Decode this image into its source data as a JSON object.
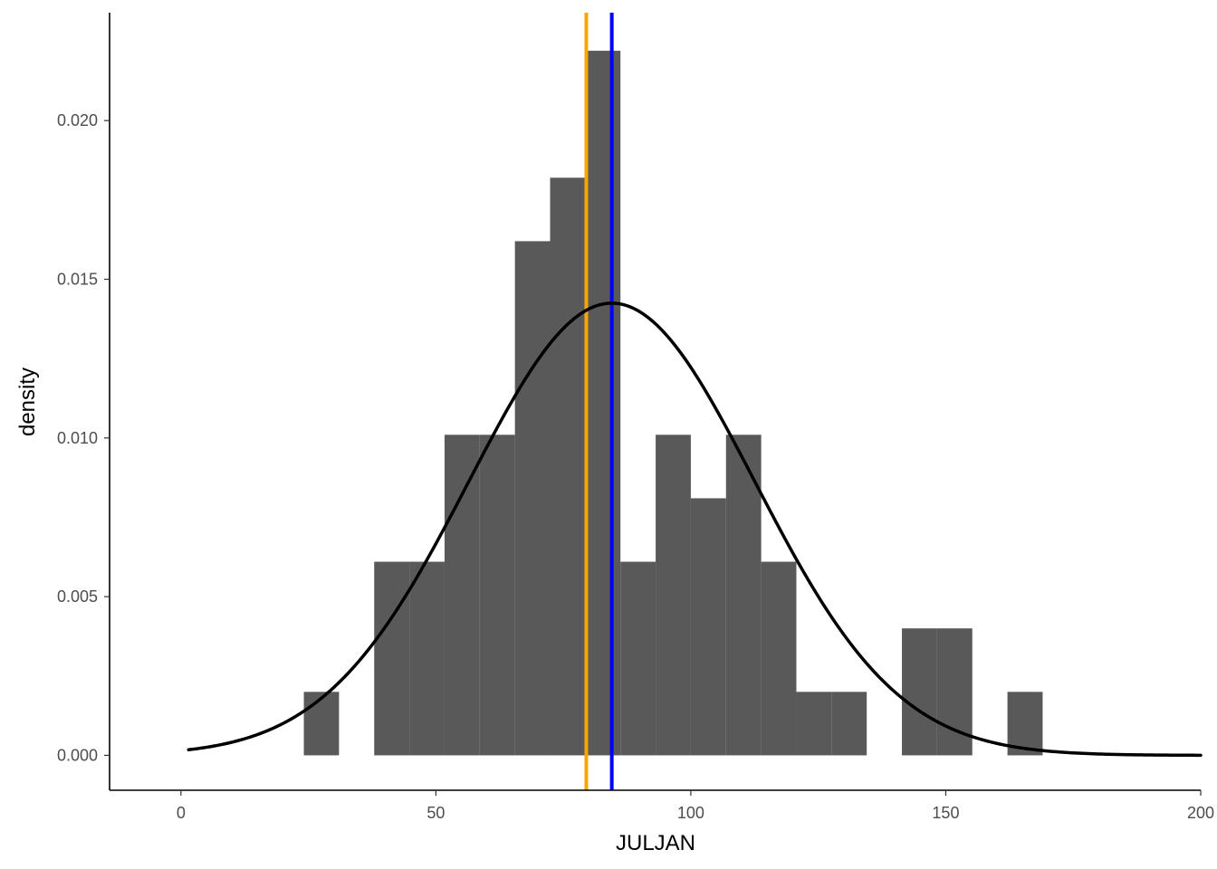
{
  "chart_data": {
    "type": "bar",
    "subtype": "histogram-with-density",
    "xlabel": "JULJAN",
    "ylabel": "density",
    "xlim": [
      -14,
      200
    ],
    "ylim": [
      -0.0011,
      0.0234
    ],
    "x_ticks": [
      0,
      50,
      100,
      150,
      200
    ],
    "x_tick_labels": [
      "0",
      "50",
      "100",
      "150",
      "200"
    ],
    "y_ticks": [
      0,
      0.005,
      0.01,
      0.015,
      0.02
    ],
    "y_tick_labels": [
      "0.000",
      "0.005",
      "0.010",
      "0.015",
      "0.020"
    ],
    "grid": false,
    "bin_width": 6.9,
    "bins": [
      {
        "start": 24.1,
        "end": 31.0,
        "density": 0.002
      },
      {
        "start": 37.9,
        "end": 44.8,
        "density": 0.0061
      },
      {
        "start": 44.8,
        "end": 51.7,
        "density": 0.0061
      },
      {
        "start": 51.7,
        "end": 58.6,
        "density": 0.0101
      },
      {
        "start": 58.6,
        "end": 65.5,
        "density": 0.0101
      },
      {
        "start": 65.5,
        "end": 72.4,
        "density": 0.0162
      },
      {
        "start": 72.4,
        "end": 79.3,
        "density": 0.0182
      },
      {
        "start": 79.3,
        "end": 86.2,
        "density": 0.0222
      },
      {
        "start": 86.2,
        "end": 93.1,
        "density": 0.0061
      },
      {
        "start": 93.1,
        "end": 100.0,
        "density": 0.0101
      },
      {
        "start": 100.0,
        "end": 106.9,
        "density": 0.0081
      },
      {
        "start": 106.9,
        "end": 113.8,
        "density": 0.0101
      },
      {
        "start": 113.8,
        "end": 120.7,
        "density": 0.0061
      },
      {
        "start": 120.7,
        "end": 127.6,
        "density": 0.002
      },
      {
        "start": 127.6,
        "end": 134.5,
        "density": 0.002
      },
      {
        "start": 141.4,
        "end": 148.3,
        "density": 0.004
      },
      {
        "start": 148.3,
        "end": 155.2,
        "density": 0.004
      },
      {
        "start": 162.1,
        "end": 169.0,
        "density": 0.002
      }
    ],
    "density_curve": {
      "type": "normal",
      "mean": 84.5,
      "sd": 28.0,
      "x_range": [
        1.5,
        200
      ]
    },
    "vlines": [
      {
        "x": 79.5,
        "color": "#FFA500"
      },
      {
        "x": 84.5,
        "color": "#0000FF"
      }
    ],
    "colors": {
      "bars": "#595959",
      "curve": "#000000",
      "axis": "#000000",
      "tick_label": "#4d4d4d"
    }
  }
}
